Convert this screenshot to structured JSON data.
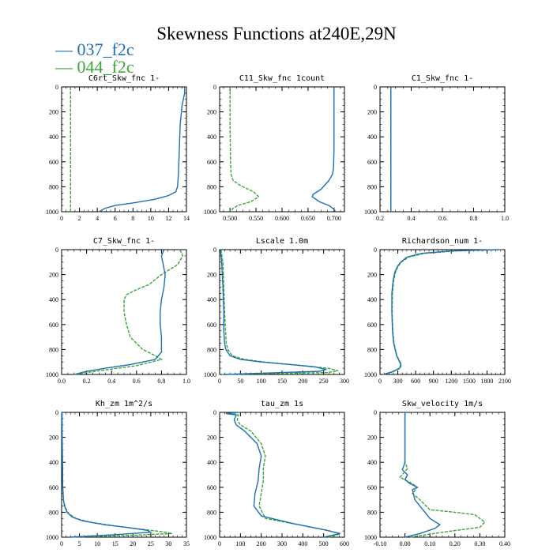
{
  "title": "Skewness Functions at240E,29N",
  "legend": {
    "placement": "top-left",
    "items": [
      {
        "name": "037_f2c",
        "color": "#1f6fb4"
      },
      {
        "name": "044_f2c",
        "color": "#3aa53a"
      }
    ]
  },
  "chart_data": [
    {
      "type": "line",
      "title": "C6rt_Skw_fnc   1-",
      "xlim": [
        0,
        14
      ],
      "ylim": [
        0,
        1000
      ],
      "xticks": [
        0,
        2,
        4,
        6,
        8,
        10,
        12,
        14
      ],
      "yticks": [
        0,
        200,
        400,
        600,
        800,
        1000
      ],
      "series": [
        {
          "name": "037_f2c",
          "x": [
            13.8,
            13.8,
            13.5,
            13.3,
            13.2,
            13.1,
            13.0,
            12.8,
            12.0,
            10.5,
            8.0,
            6.0,
            4.8,
            4.2
          ],
          "y": [
            0,
            50,
            150,
            300,
            500,
            700,
            800,
            840,
            870,
            900,
            930,
            950,
            975,
            1000
          ]
        },
        {
          "name": "044_f2c",
          "x": [
            1.0,
            1.0
          ],
          "y": [
            0,
            1000
          ]
        }
      ]
    },
    {
      "type": "line",
      "title": "C11_Skw_fnc   1count",
      "xlim": [
        0.48,
        0.72
      ],
      "ylim": [
        0,
        1000
      ],
      "xticks": [
        0.5,
        0.55,
        0.6,
        0.65,
        0.7
      ],
      "xticklabels": [
        "0.500",
        "0.550",
        "0.600",
        "0.650",
        "0.700"
      ],
      "yticks": [
        0,
        200,
        400,
        600,
        800,
        1000
      ],
      "series": [
        {
          "name": "037_f2c",
          "x": [
            0.7,
            0.7,
            0.7,
            0.699,
            0.697,
            0.69,
            0.675,
            0.66,
            0.658,
            0.672,
            0.69,
            0.7,
            0.703
          ],
          "y": [
            0,
            200,
            500,
            650,
            700,
            750,
            820,
            860,
            880,
            920,
            950,
            980,
            1000
          ]
        },
        {
          "name": "044_f2c",
          "x": [
            0.5,
            0.5,
            0.501,
            0.502,
            0.506,
            0.52,
            0.545,
            0.555,
            0.54,
            0.515,
            0.505,
            0.503
          ],
          "y": [
            0,
            300,
            600,
            700,
            750,
            790,
            840,
            880,
            920,
            950,
            975,
            1000
          ]
        }
      ]
    },
    {
      "type": "line",
      "title": "C1_Skw_fnc   1-",
      "xlim": [
        0.2,
        1.0
      ],
      "ylim": [
        0,
        1000
      ],
      "xticks": [
        0.2,
        0.4,
        0.6,
        0.8,
        1.0
      ],
      "xticklabels": [
        "0.2",
        "0.4",
        "0.6",
        "0.8",
        "1.0"
      ],
      "yticks": [
        0,
        200,
        400,
        600,
        800,
        1000
      ],
      "series": [
        {
          "name": "037_f2c",
          "x": [
            0.27,
            0.27
          ],
          "y": [
            0,
            1000
          ]
        },
        {
          "name": "044_f2c",
          "x": [
            0.27,
            0.27
          ],
          "y": [
            0,
            1000
          ]
        }
      ]
    },
    {
      "type": "line",
      "title": "C7_Skw_fnc   1-",
      "xlim": [
        0,
        1.0
      ],
      "ylim": [
        0,
        1000
      ],
      "xticks": [
        0,
        0.2,
        0.4,
        0.6,
        0.8,
        1.0
      ],
      "xticklabels": [
        "0.0",
        "0.2",
        "0.4",
        "0.6",
        "0.8",
        "1.0"
      ],
      "yticks": [
        0,
        200,
        400,
        600,
        800,
        1000
      ],
      "series": [
        {
          "name": "037_f2c",
          "x": [
            0.82,
            0.8,
            0.81,
            0.83,
            0.82,
            0.8,
            0.79,
            0.79,
            0.8,
            0.8,
            0.75,
            0.55,
            0.35,
            0.2,
            0.1
          ],
          "y": [
            0,
            50,
            100,
            200,
            300,
            400,
            500,
            600,
            700,
            820,
            880,
            920,
            950,
            975,
            1000
          ]
        },
        {
          "name": "044_f2c",
          "x": [
            0.95,
            0.97,
            0.93,
            0.8,
            0.7,
            0.6,
            0.52,
            0.5,
            0.5,
            0.52,
            0.55,
            0.65,
            0.75,
            0.8,
            0.6,
            0.3,
            0.1
          ],
          "y": [
            0,
            50,
            120,
            200,
            280,
            320,
            360,
            400,
            500,
            600,
            700,
            800,
            850,
            880,
            930,
            970,
            1000
          ]
        }
      ]
    },
    {
      "type": "line",
      "title": "Lscale   1.0m",
      "xlim": [
        0,
        300
      ],
      "ylim": [
        0,
        1000
      ],
      "xticks": [
        0,
        50,
        100,
        150,
        200,
        250,
        300
      ],
      "yticks": [
        0,
        200,
        400,
        600,
        800,
        1000
      ],
      "series": [
        {
          "name": "037_f2c",
          "x": [
            2,
            5,
            8,
            10,
            10,
            12,
            15,
            25,
            50,
            100,
            170,
            230,
            255,
            240,
            100,
            10
          ],
          "y": [
            0,
            100,
            300,
            500,
            650,
            750,
            800,
            850,
            880,
            900,
            920,
            940,
            960,
            975,
            990,
            1000
          ]
        },
        {
          "name": "044_f2c",
          "x": [
            3,
            8,
            10,
            12,
            14,
            16,
            20,
            30,
            60,
            120,
            200,
            260,
            285,
            260,
            80,
            5
          ],
          "y": [
            0,
            100,
            300,
            500,
            650,
            750,
            800,
            850,
            880,
            905,
            930,
            950,
            970,
            985,
            995,
            1000
          ]
        }
      ]
    },
    {
      "type": "line",
      "title": "Richardson_num   1-",
      "xlim": [
        0,
        2100
      ],
      "ylim": [
        0,
        1000
      ],
      "xticks": [
        0,
        300,
        600,
        900,
        1200,
        1500,
        1800,
        2100
      ],
      "yticks": [
        0,
        200,
        400,
        600,
        800,
        1000
      ],
      "series": [
        {
          "name": "037_f2c",
          "x": [
            2000,
            1200,
            700,
            450,
            350,
            300,
            250,
            220,
            200,
            200,
            210,
            230,
            280,
            350,
            330,
            200,
            50
          ],
          "y": [
            0,
            10,
            30,
            60,
            100,
            130,
            180,
            250,
            350,
            500,
            650,
            750,
            850,
            920,
            950,
            980,
            1000
          ]
        },
        {
          "name": "044_f2c",
          "x": [
            2050,
            1300,
            750,
            480,
            360,
            310,
            260,
            230,
            210,
            205,
            215,
            235,
            285,
            360,
            340,
            210,
            60
          ],
          "y": [
            0,
            10,
            30,
            60,
            100,
            130,
            180,
            250,
            350,
            500,
            650,
            750,
            850,
            920,
            950,
            980,
            1000
          ]
        }
      ]
    },
    {
      "type": "line",
      "title": "Kh_zm   1m^2/s",
      "xlim": [
        0,
        35
      ],
      "ylim": [
        0,
        1000
      ],
      "xticks": [
        0,
        5,
        10,
        15,
        20,
        25,
        30,
        35
      ],
      "yticks": [
        0,
        200,
        400,
        600,
        800,
        1000
      ],
      "series": [
        {
          "name": "037_f2c",
          "x": [
            0.1,
            0.2,
            0.3,
            0.5,
            0.8,
            1.5,
            3,
            6,
            12,
            18,
            24,
            25,
            15,
            2
          ],
          "y": [
            0,
            300,
            600,
            700,
            750,
            800,
            840,
            870,
            900,
            920,
            945,
            960,
            980,
            1000
          ]
        },
        {
          "name": "044_f2c",
          "x": [
            0.1,
            0.2,
            0.3,
            0.5,
            1.0,
            2,
            4,
            8,
            15,
            22,
            28,
            31,
            20,
            2
          ],
          "y": [
            0,
            300,
            600,
            700,
            760,
            810,
            850,
            880,
            910,
            935,
            955,
            970,
            985,
            1000
          ]
        }
      ]
    },
    {
      "type": "line",
      "title": "tau_zm   1s",
      "xlim": [
        0,
        600
      ],
      "ylim": [
        0,
        1000
      ],
      "xticks": [
        0,
        100,
        200,
        300,
        400,
        500,
        600
      ],
      "yticks": [
        0,
        200,
        400,
        600,
        800,
        1000
      ],
      "series": [
        {
          "name": "037_f2c",
          "x": [
            90,
            30,
            80,
            70,
            80,
            120,
            180,
            200,
            190,
            185,
            170,
            165,
            200,
            350,
            500,
            580,
            500
          ],
          "y": [
            0,
            10,
            20,
            60,
            100,
            150,
            250,
            350,
            450,
            550,
            650,
            750,
            830,
            890,
            940,
            970,
            1000
          ]
        },
        {
          "name": "044_f2c",
          "x": [
            100,
            40,
            90,
            85,
            100,
            150,
            200,
            220,
            210,
            210,
            200,
            190,
            220,
            380,
            520,
            580,
            520
          ],
          "y": [
            0,
            10,
            20,
            60,
            100,
            150,
            250,
            350,
            450,
            550,
            650,
            750,
            850,
            900,
            945,
            975,
            1000
          ]
        }
      ]
    },
    {
      "type": "line",
      "title": "Skw_velocity   1m/s",
      "xlim": [
        -0.1,
        0.4
      ],
      "ylim": [
        0,
        1000
      ],
      "xticks": [
        -0.1,
        0,
        0.1,
        0.2,
        0.3,
        0.4
      ],
      "xticklabels": [
        "-0.10",
        "0.00",
        "0.10",
        "0.20",
        "0.30",
        "0.40"
      ],
      "yticks": [
        0,
        200,
        400,
        600,
        800,
        1000
      ],
      "series": [
        {
          "name": "037_f2c",
          "x": [
            0.0,
            0.0,
            0.0,
            -0.01,
            0.01,
            0.0,
            0.02,
            0.04,
            0.05,
            0.03,
            0.04,
            0.1,
            0.14,
            0.12,
            0.06,
            0.0
          ],
          "y": [
            0,
            200,
            400,
            460,
            500,
            540,
            570,
            590,
            600,
            620,
            700,
            850,
            900,
            930,
            970,
            1000
          ]
        },
        {
          "name": "044_f2c",
          "x": [
            0.0,
            0.0,
            0.0,
            0.01,
            -0.02,
            0.02,
            0.05,
            0.03,
            0.06,
            0.1,
            0.2,
            0.28,
            0.32,
            0.3,
            0.15,
            0.02
          ],
          "y": [
            0,
            200,
            400,
            450,
            520,
            560,
            600,
            650,
            700,
            780,
            800,
            820,
            880,
            920,
            960,
            1000
          ]
        }
      ]
    }
  ]
}
